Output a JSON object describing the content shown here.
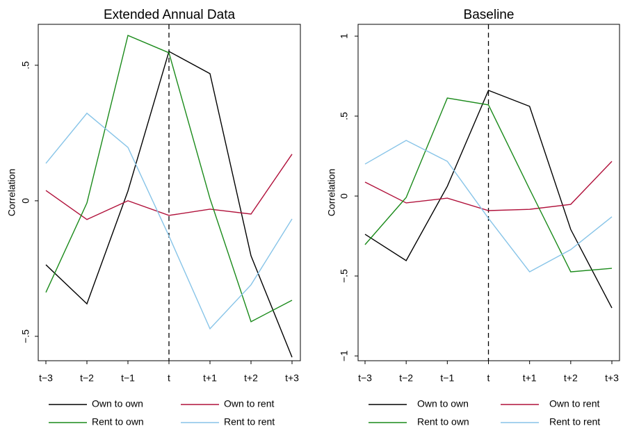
{
  "chart_data": [
    {
      "type": "line",
      "title": "Extended Annual Data",
      "y_label": "Correlation",
      "categories": [
        "t−3",
        "t−2",
        "t−1",
        "t",
        "t+1",
        "t+2",
        "t+3"
      ],
      "ylim": [
        -0.59,
        0.651
      ],
      "yticks": [
        {
          "value": -0.5,
          "label": "−.5"
        },
        0,
        {
          "value": 0.5,
          "label": ".5"
        }
      ],
      "vline": "t",
      "series": [
        {
          "name": "Own to own",
          "color": "#000000",
          "values": [
            -0.236,
            -0.38,
            0.036,
            0.551,
            0.469,
            -0.203,
            -0.577
          ]
        },
        {
          "name": "Own to rent",
          "color": "#b0103a",
          "values": [
            0.038,
            -0.069,
            0.0,
            -0.054,
            -0.031,
            -0.049,
            0.172
          ]
        },
        {
          "name": "Rent to own",
          "color": "#1a8a1a",
          "values": [
            -0.338,
            -0.008,
            0.61,
            0.546,
            0.008,
            -0.446,
            -0.367
          ]
        },
        {
          "name": "Rent to rent",
          "color": "#87c4e8",
          "values": [
            0.138,
            0.323,
            0.197,
            -0.13,
            -0.472,
            -0.31,
            -0.067
          ]
        }
      ]
    },
    {
      "type": "line",
      "title": "Baseline",
      "y_label": "Correlation",
      "categories": [
        "t−3",
        "t−2",
        "t−1",
        "t",
        "t+1",
        "t+2",
        "t+3"
      ],
      "ylim": [
        -1.03,
        1.074
      ],
      "yticks": [
        {
          "value": -1,
          "label": "−1"
        },
        {
          "value": -0.5,
          "label": "−.5"
        },
        0,
        {
          "value": 0.5,
          "label": ".5"
        },
        1
      ],
      "vline": "t",
      "series": [
        {
          "name": "Own to own",
          "color": "#000000",
          "values": [
            -0.239,
            -0.404,
            0.061,
            0.661,
            0.561,
            -0.209,
            -0.7
          ]
        },
        {
          "name": "Own to rent",
          "color": "#b0103a",
          "values": [
            0.087,
            -0.043,
            -0.013,
            -0.091,
            -0.083,
            -0.052,
            0.217
          ]
        },
        {
          "name": "Rent to own",
          "color": "#1a8a1a",
          "values": [
            -0.304,
            -0.009,
            0.613,
            0.57,
            0.043,
            -0.474,
            -0.452
          ]
        },
        {
          "name": "Rent to rent",
          "color": "#87c4e8",
          "values": [
            0.2,
            0.348,
            0.217,
            -0.139,
            -0.474,
            -0.335,
            -0.13
          ]
        }
      ]
    }
  ]
}
